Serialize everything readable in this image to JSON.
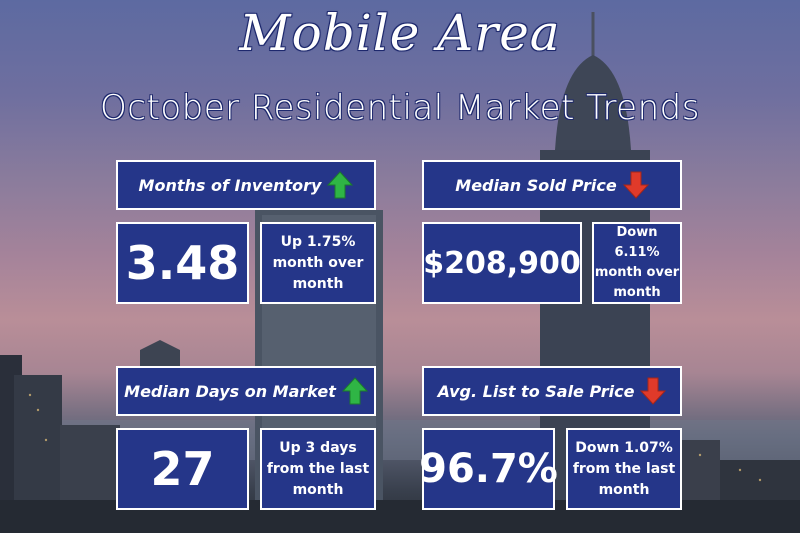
{
  "header": {
    "title": "Mobile Area",
    "subtitle": "October Residential Market Trends"
  },
  "colors": {
    "box_fill": "#253689",
    "up_arrow": "#2fb545",
    "down_arrow": "#e03a2a"
  },
  "metrics": [
    {
      "label": "Months of Inventory",
      "value": "3.48",
      "change_line1": "Up 1.75%",
      "change_line2": "month over",
      "change_line3": "month",
      "direction": "up",
      "arrow_icon": "arrow-up-icon"
    },
    {
      "label": "Median Sold Price",
      "value": "$208,900",
      "change_line1": "Down 6.11%",
      "change_line2": "month over",
      "change_line3": "month",
      "direction": "down",
      "arrow_icon": "arrow-down-icon"
    },
    {
      "label": "Median Days on Market",
      "value": "27",
      "change_line1": "Up 3 days",
      "change_line2": "from the last",
      "change_line3": "month",
      "direction": "up",
      "arrow_icon": "arrow-up-icon"
    },
    {
      "label": "Avg. List to Sale Price",
      "value": "96.7%",
      "change_line1": "Down 1.07%",
      "change_line2": "from the last",
      "change_line3": "month",
      "direction": "down",
      "arrow_icon": "arrow-down-icon"
    }
  ]
}
